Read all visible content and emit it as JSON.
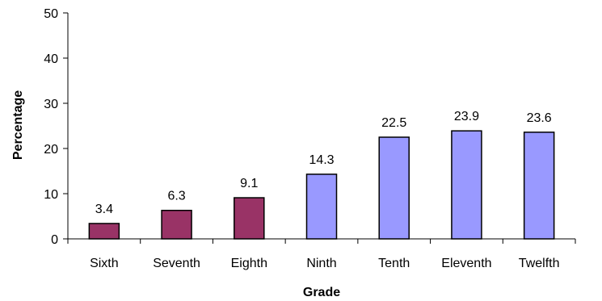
{
  "chart_data": {
    "type": "bar",
    "title": "",
    "xlabel": "Grade",
    "ylabel": "Percentage",
    "ylim": [
      0,
      50
    ],
    "yticks": [
      0,
      10,
      20,
      30,
      40,
      50
    ],
    "grid": false,
    "categories": [
      "Sixth",
      "Seventh",
      "Eighth",
      "Ninth",
      "Tenth",
      "Eleventh",
      "Twelfth"
    ],
    "values": [
      3.4,
      6.3,
      9.1,
      14.3,
      22.5,
      23.9,
      23.6
    ],
    "data_labels": [
      "3.4",
      "6.3",
      "9.1",
      "14.3",
      "22.5",
      "23.9",
      "23.6"
    ],
    "bar_colors": [
      "#993366",
      "#993366",
      "#993366",
      "#9999ff",
      "#9999ff",
      "#9999ff",
      "#9999ff"
    ]
  }
}
